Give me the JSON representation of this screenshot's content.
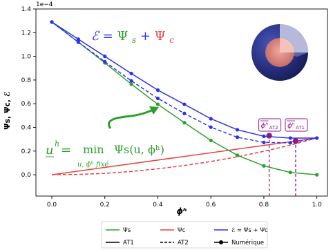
{
  "chart_data": {
    "type": "line",
    "title": "",
    "xlabel": "ϕʰ",
    "ylabel": "Ψs, Ψc, ℰ",
    "y_offset_text": "1e−4",
    "xlim": [
      -0.06,
      1.04
    ],
    "ylim": [
      -1.8e-05,
      0.00014
    ],
    "x_ticks": [
      0.0,
      0.2,
      0.4,
      0.6,
      0.8,
      1.0
    ],
    "x_tick_labels": [
      "0.0",
      "0.2",
      "0.4",
      "0.6",
      "0.8",
      "1.0"
    ],
    "y_ticks": [
      0.0,
      2e-05,
      4e-05,
      6e-05,
      8e-05,
      0.0001,
      0.00012,
      0.00014
    ],
    "y_tick_labels": [
      "0.0",
      "0.2",
      "0.4",
      "0.6",
      "0.8",
      "1.0",
      "1.2",
      "1.4"
    ],
    "grid": false,
    "legend_position": "bottom-center-outside",
    "series": [
      {
        "name": "Ψs",
        "key": "psi_s",
        "color": "#2ca02c",
        "dash": "solid",
        "x": [
          0.0,
          0.1,
          0.2,
          0.3,
          0.4,
          0.5,
          0.6,
          0.7,
          0.8,
          0.9,
          1.0
        ],
        "y": [
          0.000129,
          0.000112,
          9.45e-05,
          7.65e-05,
          5.95e-05,
          4.4e-05,
          2.9e-05,
          1.65e-05,
          7.5e-06,
          2e-06,
          0.0
        ]
      },
      {
        "name": "Ψc",
        "key": "psi_c",
        "color": "#e8413c",
        "dash": "solid",
        "x": [
          0.0,
          1.0
        ],
        "y": [
          0.0,
          3.1e-05
        ]
      },
      {
        "name": "Ψc AT2",
        "key": "psi_c_at2",
        "color": "#e8413c",
        "dash": "dashed",
        "x": [
          0.0,
          0.1,
          0.2,
          0.3,
          0.4,
          0.5,
          0.6,
          0.7,
          0.8,
          0.9,
          1.0
        ],
        "y": [
          0.0,
          3e-07,
          1.2e-06,
          2.8e-06,
          5e-06,
          7.8e-06,
          1.12e-05,
          1.52e-05,
          1.98e-05,
          2.5e-05,
          3.1e-05
        ]
      },
      {
        "name": "ℰ AT1",
        "key": "e_at1",
        "color": "#2b2ff0",
        "dash": "solid",
        "x": [
          0.0,
          0.1,
          0.2,
          0.3,
          0.4,
          0.5,
          0.6,
          0.7,
          0.8,
          0.9,
          1.0
        ],
        "y": [
          0.000129,
          0.0001145,
          0.0001,
          8.55e-05,
          7.15e-05,
          5.95e-05,
          4.73e-05,
          3.8e-05,
          3.25e-05,
          3.1e-05,
          3.1e-05
        ]
      },
      {
        "name": "ℰ AT2",
        "key": "e_at2",
        "color": "#2b2ff0",
        "dash": "dashed",
        "x": [
          0.0,
          0.1,
          0.2,
          0.3,
          0.4,
          0.5,
          0.6,
          0.7,
          0.8,
          0.9,
          1.0
        ],
        "y": [
          0.000129,
          0.000112,
          9.55e-05,
          7.93e-05,
          6.45e-05,
          5.18e-05,
          4.02e-05,
          3.17e-05,
          2.73e-05,
          2.7e-05,
          3.1e-05
        ]
      }
    ],
    "markers": {
      "psi_s": [
        0.0,
        0.1,
        0.2,
        0.3,
        0.4,
        0.5,
        0.6,
        0.7,
        0.8,
        0.9,
        1.0
      ],
      "e_at1": [
        0.0,
        0.1,
        0.2,
        0.3,
        0.4,
        0.5,
        0.6,
        0.7,
        0.8,
        0.9,
        1.0
      ],
      "e_at2": [
        0.0,
        0.1,
        0.2,
        0.3,
        0.4,
        0.5,
        0.6,
        0.7,
        0.8,
        0.9,
        1.0
      ]
    },
    "optima": [
      {
        "x": 0.82,
        "y": 3.3e-05,
        "label": "ϕʰ",
        "sub": "AT2",
        "color": "#8b1a8b"
      },
      {
        "x": 0.92,
        "y": 2.85e-05,
        "label": "ϕʰ",
        "sub": "AT1",
        "color": "#8b1a8b"
      }
    ],
    "annotations": {
      "energy_eq": {
        "lhs": "ℰ",
        "eq": " = ",
        "t1": "Ψ",
        "t1sub": "s",
        "plus": " + ",
        "t2": "Ψ",
        "t2sub": "c",
        "lhs_color": "#2b2ff0",
        "t1_color": "#2ca02c",
        "t2_color": "#e8413c"
      },
      "min_eq": {
        "lhs": "u",
        "lhs_sup": "h",
        "eq": " = ",
        "op": "min",
        "rhs": "Ψs(u, ϕʰ)",
        "under": "u, ϕʰ fixé",
        "color": "#2ca02c"
      }
    },
    "legend": [
      {
        "label": "Ψs",
        "color": "#2ca02c",
        "style": "solid",
        "marker": false
      },
      {
        "label": "Ψc",
        "color": "#e8413c",
        "style": "solid",
        "marker": false
      },
      {
        "label": "ℰ = Ψs + Ψc",
        "color": "#2b2ff0",
        "style": "solid",
        "marker": false
      },
      {
        "label": "AT1",
        "color": "#000000",
        "style": "solid",
        "marker": false
      },
      {
        "label": "AT2",
        "color": "#000000",
        "style": "dashed",
        "marker": false
      },
      {
        "label": "Numérique",
        "color": "#000000",
        "style": "solid",
        "marker": true
      }
    ],
    "inset": {
      "kind": "sphere-cutaway",
      "outer": "#262f7e",
      "inner": "#d98880"
    }
  }
}
